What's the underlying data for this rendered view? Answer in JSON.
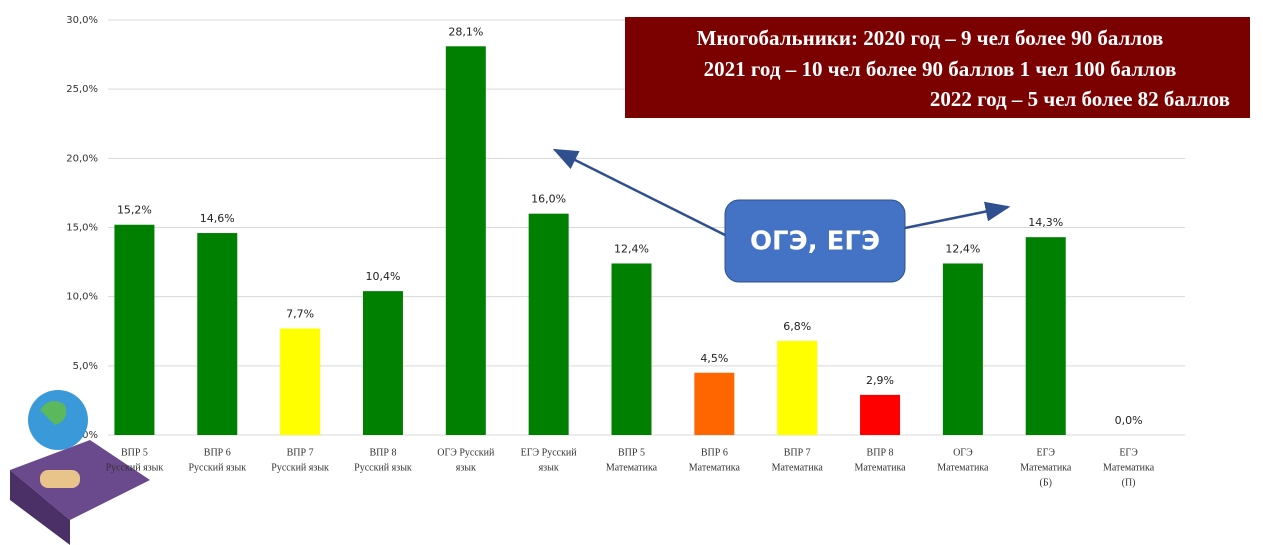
{
  "chart_data": {
    "type": "bar",
    "categories": [
      [
        "ВПР 5",
        "Русский язык"
      ],
      [
        "ВПР 6",
        "Русский язык"
      ],
      [
        "ВПР 7",
        "Русский язык"
      ],
      [
        "ВПР 8",
        "Русский язык"
      ],
      [
        "ОГЭ Русский",
        "язык"
      ],
      [
        "ЕГЭ Русский",
        "язык"
      ],
      [
        "ВПР 5",
        "Математика"
      ],
      [
        "ВПР 6",
        "Математика"
      ],
      [
        "ВПР 7",
        "Математика"
      ],
      [
        "ВПР 8",
        "Математика"
      ],
      [
        "ОГЭ",
        "Математика"
      ],
      [
        "ЕГЭ",
        "Математика",
        "(Б)"
      ],
      [
        "ЕГЭ",
        "Математика",
        "(П)"
      ]
    ],
    "values": [
      15.2,
      14.6,
      7.7,
      10.4,
      28.1,
      16.0,
      12.4,
      4.5,
      6.8,
      2.9,
      12.4,
      14.3,
      0.0
    ],
    "value_labels": [
      "15,2%",
      "14,6%",
      "7,7%",
      "10,4%",
      "28,1%",
      "16,0%",
      "12,4%",
      "4,5%",
      "6,8%",
      "2,9%",
      "12,4%",
      "14,3%",
      "0,0%"
    ],
    "colors": [
      "#008000",
      "#008000",
      "#ffff00",
      "#008000",
      "#008000",
      "#008000",
      "#008000",
      "#ff6600",
      "#ffff00",
      "#ff0000",
      "#008000",
      "#008000",
      "#008000"
    ],
    "ylim": [
      0,
      30
    ],
    "yticks": [
      {
        "value": 0,
        "label": "0,0%"
      },
      {
        "value": 5,
        "label": "5,0%"
      },
      {
        "value": 10,
        "label": "10,0%"
      },
      {
        "value": 15,
        "label": "15,0%"
      },
      {
        "value": 20,
        "label": "20,0%"
      },
      {
        "value": 25,
        "label": "25,0%"
      },
      {
        "value": 30,
        "label": "30,0%"
      }
    ],
    "grid": true,
    "annotations": {
      "info_box": [
        "Многобальники: 2020 год – 9 чел более 90 баллов",
        "2021 год – 10 чел более 90 баллов 1 чел 100 баллов",
        "2022 год – 5 чел более 82 баллов"
      ],
      "callout": "ОГЭ, ЕГЭ"
    }
  }
}
